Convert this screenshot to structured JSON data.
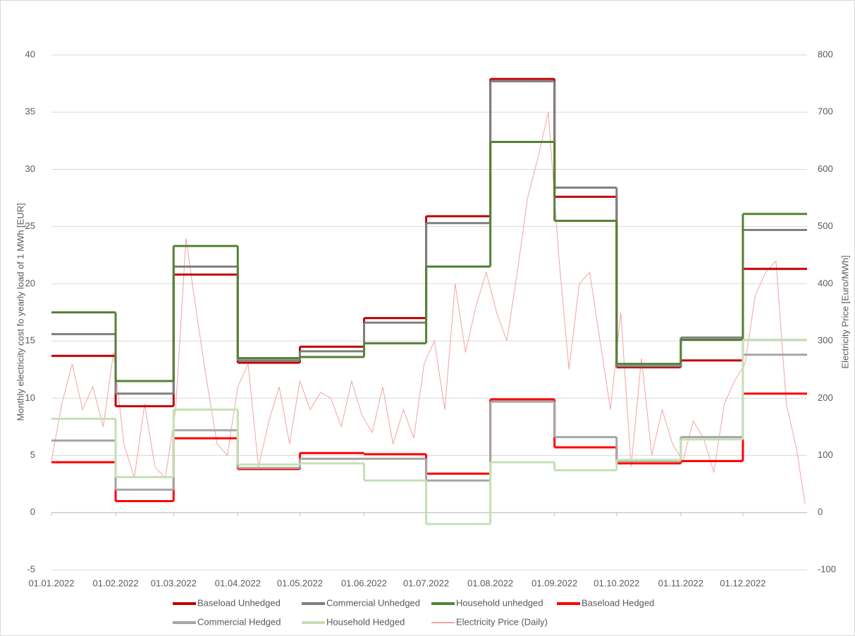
{
  "chart_data": [
    {
      "type": "step",
      "x": [
        "01.01.2022",
        "01.02.2022",
        "01.03.2022",
        "01.04.2022",
        "01.05.2022",
        "01.06.2022",
        "01.07.2022",
        "01.08.2022",
        "01.09.2022",
        "01.10.2022",
        "01.11.2022",
        "01.12.2022"
      ],
      "y_label": "Monthly electricity cost fo yearly load of 1 MWh [EUR]",
      "ylim": [
        -5,
        40
      ],
      "yticks": [
        -5,
        0,
        5,
        10,
        15,
        20,
        25,
        30,
        35,
        40
      ],
      "grid": true,
      "series": [
        {
          "name": "Baseload Unhedged",
          "color": "#c00000",
          "values": [
            13.7,
            9.3,
            20.8,
            13.1,
            14.5,
            17.0,
            25.9,
            37.9,
            27.6,
            12.7,
            13.3,
            21.3
          ]
        },
        {
          "name": "Commercial Unhedged",
          "color": "#7f7f7f",
          "values": [
            15.6,
            10.4,
            21.5,
            13.3,
            14.1,
            16.6,
            25.3,
            37.7,
            28.4,
            12.8,
            15.3,
            24.7
          ]
        },
        {
          "name": "Household unhedged",
          "color": "#548235",
          "values": [
            17.5,
            11.5,
            23.3,
            13.5,
            13.6,
            14.8,
            21.5,
            32.4,
            25.5,
            13.0,
            15.1,
            26.1
          ]
        },
        {
          "name": "Baseload Hedged",
          "color": "#ff0000",
          "values": [
            4.4,
            1.0,
            6.5,
            3.8,
            5.2,
            5.1,
            3.4,
            9.9,
            5.7,
            4.3,
            4.5,
            10.4
          ]
        },
        {
          "name": "Commercial Hedged",
          "color": "#a6a6a6",
          "values": [
            6.3,
            2.0,
            7.2,
            3.9,
            4.7,
            4.7,
            2.8,
            9.7,
            6.6,
            4.5,
            6.6,
            13.8
          ]
        },
        {
          "name": "Household Hedged",
          "color": "#c5e0b4",
          "values": [
            8.2,
            3.1,
            9.0,
            4.2,
            4.3,
            2.8,
            -1.0,
            4.4,
            3.7,
            4.6,
            6.4,
            15.1
          ]
        }
      ]
    },
    {
      "type": "line",
      "x": [
        "01.01.2022",
        "06.01.2022",
        "11.01.2022",
        "16.01.2022",
        "21.01.2022",
        "26.01.2022",
        "31.01.2022",
        "05.02.2022",
        "10.02.2022",
        "15.02.2022",
        "20.02.2022",
        "25.02.2022",
        "02.03.2022",
        "07.03.2022",
        "12.03.2022",
        "17.03.2022",
        "22.03.2022",
        "27.03.2022",
        "01.04.2022",
        "06.04.2022",
        "11.04.2022",
        "16.04.2022",
        "21.04.2022",
        "26.04.2022",
        "01.05.2022",
        "06.05.2022",
        "11.05.2022",
        "16.05.2022",
        "21.05.2022",
        "26.05.2022",
        "31.05.2022",
        "05.06.2022",
        "10.06.2022",
        "15.06.2022",
        "20.06.2022",
        "25.06.2022",
        "30.06.2022",
        "05.07.2022",
        "10.07.2022",
        "15.07.2022",
        "20.07.2022",
        "25.07.2022",
        "30.07.2022",
        "04.08.2022",
        "09.08.2022",
        "14.08.2022",
        "19.08.2022",
        "24.08.2022",
        "29.08.2022",
        "03.09.2022",
        "08.09.2022",
        "13.09.2022",
        "18.09.2022",
        "23.09.2022",
        "28.09.2022",
        "03.10.2022",
        "08.10.2022",
        "13.10.2022",
        "18.10.2022",
        "23.10.2022",
        "28.10.2022",
        "02.11.2022",
        "07.11.2022",
        "12.11.2022",
        "17.11.2022",
        "22.11.2022",
        "27.11.2022",
        "02.12.2022",
        "07.12.2022",
        "12.12.2022",
        "17.12.2022",
        "22.12.2022",
        "27.12.2022",
        "31.12.2022"
      ],
      "y2_label": "Electricity Price [Euro/MWh]",
      "y2lim": [
        -100,
        800
      ],
      "y2ticks": [
        -100,
        0,
        100,
        200,
        300,
        400,
        500,
        600,
        700,
        800
      ],
      "series": [
        {
          "name": "Electricity Price (Daily)",
          "color": "#f4a3a3",
          "axis": "y2",
          "values": [
            90,
            190,
            260,
            180,
            220,
            150,
            280,
            120,
            60,
            190,
            80,
            60,
            180,
            480,
            350,
            230,
            120,
            100,
            220,
            260,
            80,
            160,
            220,
            120,
            230,
            180,
            210,
            200,
            150,
            230,
            170,
            140,
            220,
            120,
            180,
            130,
            260,
            300,
            180,
            400,
            280,
            360,
            420,
            350,
            300,
            420,
            550,
            620,
            700,
            450,
            250,
            400,
            420,
            300,
            180,
            350,
            80,
            270,
            100,
            180,
            120,
            90,
            160,
            130,
            70,
            190,
            230,
            260,
            380,
            420,
            440,
            190,
            110,
            15
          ]
        }
      ]
    }
  ]
}
